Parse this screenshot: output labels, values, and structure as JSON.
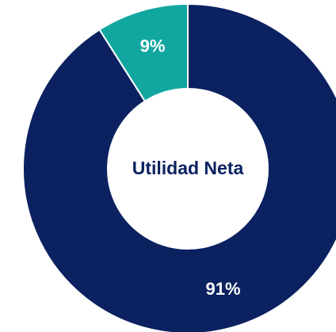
{
  "chart_data": {
    "type": "donut",
    "center_label": "Utilidad Neta",
    "categories": [
      null,
      null
    ],
    "values": [
      91,
      9
    ],
    "value_labels": [
      "91%",
      "9%"
    ],
    "colors": [
      "#0b2160",
      "#11a7a0"
    ]
  }
}
